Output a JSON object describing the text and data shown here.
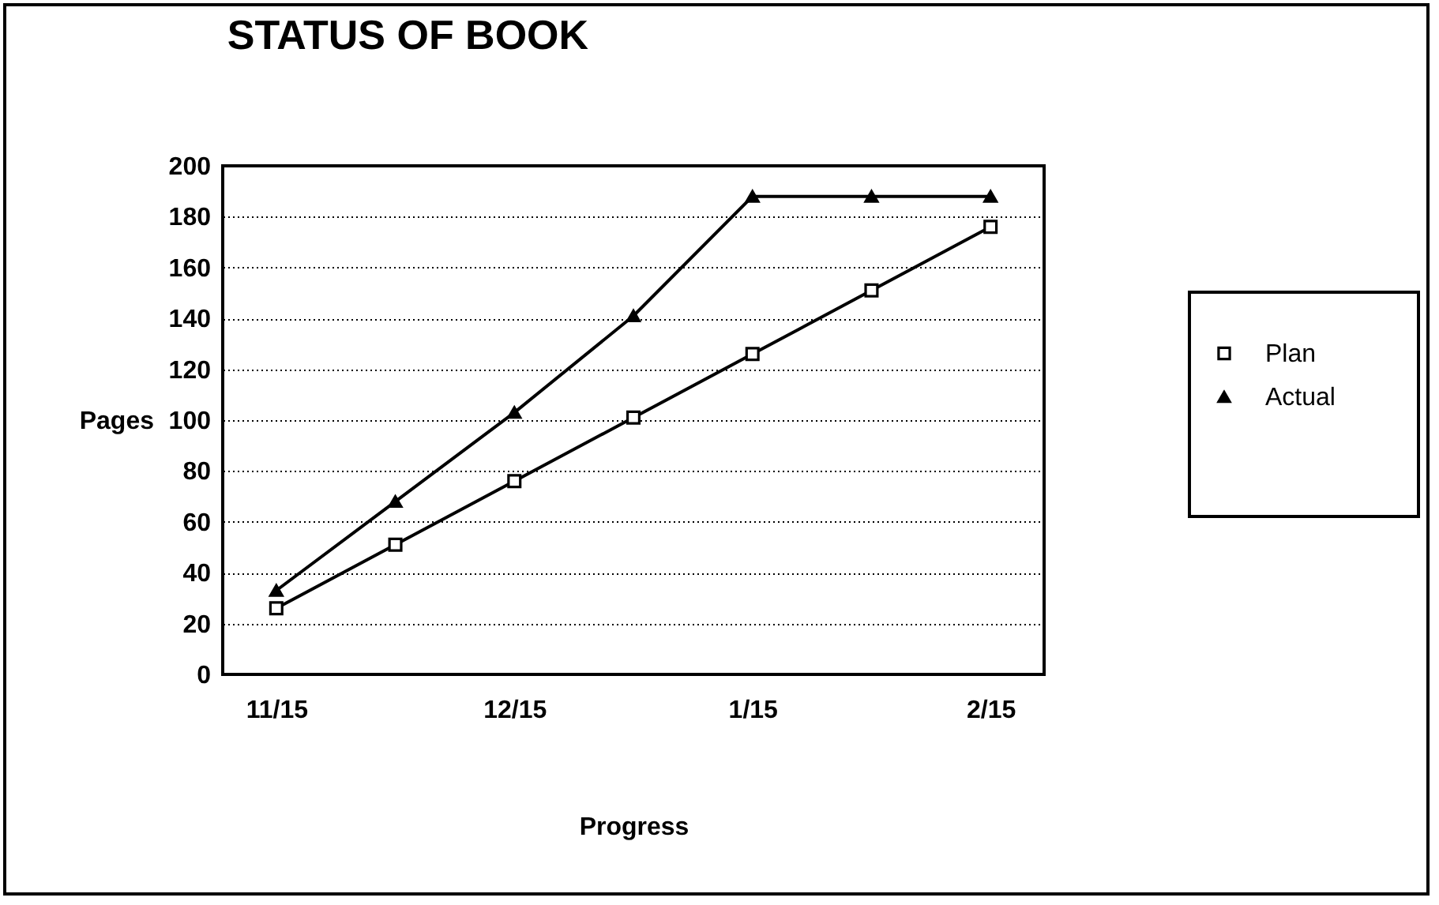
{
  "chart_data": {
    "type": "line",
    "title": "STATUS OF BOOK",
    "xlabel": "Progress",
    "ylabel": "Pages",
    "categories": [
      "11/15",
      null,
      "12/15",
      null,
      "1/15",
      null,
      "2/15"
    ],
    "series": [
      {
        "name": "Plan",
        "color": "#000000",
        "marker": "square",
        "values": [
          26,
          51,
          76,
          101,
          126,
          151,
          176
        ]
      },
      {
        "name": "Actual",
        "color": "#000000",
        "marker": "triangle",
        "values": [
          33,
          68,
          103,
          141,
          188,
          188,
          188
        ]
      }
    ],
    "ylim": [
      0,
      200
    ],
    "yticks": [
      0,
      20,
      40,
      60,
      80,
      100,
      120,
      140,
      160,
      180,
      200
    ],
    "grid": "y",
    "legend": "right",
    "line_style": "solid"
  }
}
